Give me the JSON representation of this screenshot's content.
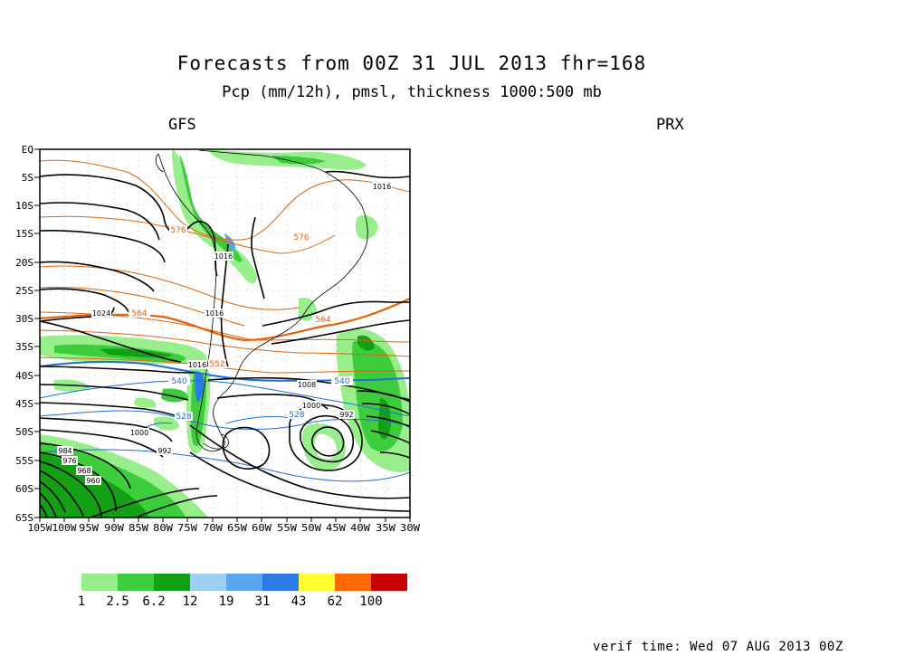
{
  "header": {
    "title": "Forecasts from 00Z 31 JUL 2013   fhr=168",
    "subtitle": "Pcp (mm/12h), pmsl, thickness 1000:500 mb",
    "model_left": "GFS",
    "model_right": "PRX"
  },
  "map": {
    "lat_labels": [
      "EQ",
      "5S",
      "10S",
      "15S",
      "20S",
      "25S",
      "30S",
      "35S",
      "40S",
      "45S",
      "50S",
      "55S",
      "60S",
      "65S"
    ],
    "lon_labels": [
      "105W",
      "100W",
      "95W",
      "90W",
      "85W",
      "80W",
      "75W",
      "70W",
      "65W",
      "60W",
      "55W",
      "50W",
      "45W",
      "40W",
      "35W",
      "30W"
    ],
    "isobar_labels": [
      "1016",
      "1016",
      "1016",
      "1024",
      "1016",
      "1008",
      "1000",
      "992",
      "1000",
      "992",
      "984",
      "976",
      "968",
      "960"
    ],
    "thickness_labels": [
      "576",
      "576",
      "564",
      "564",
      "552",
      "540",
      "540",
      "528",
      "528"
    ],
    "colors": {
      "isobar": "#000000",
      "thickness_warm": "#e0640a",
      "thickness_cold": "#1e6fd9",
      "coast": "#000000"
    }
  },
  "legend": {
    "colors": [
      "#98ee8a",
      "#3ccc3c",
      "#14a014",
      "#9cd0f4",
      "#5aa6ef",
      "#2a7be6",
      "#ffff33",
      "#ff6a00",
      "#c80000"
    ],
    "labels": [
      "1",
      "2.5",
      "6.2",
      "12",
      "19",
      "31",
      "43",
      "62",
      "100"
    ]
  },
  "footer": {
    "verif_time": "verif time: Wed 07 AUG 2013 00Z"
  }
}
